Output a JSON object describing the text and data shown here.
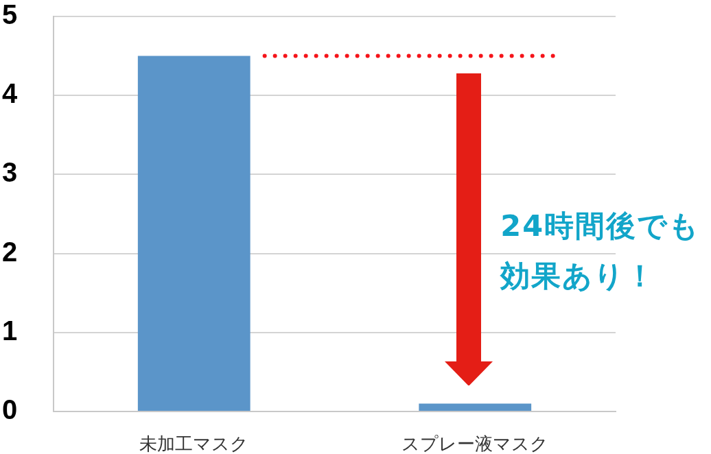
{
  "chart_data": {
    "type": "bar",
    "categories": [
      "未加工マスク",
      "スプレー液マスク"
    ],
    "values": [
      4.5,
      0.1
    ],
    "color": "#5b95c9",
    "ylim": [
      0,
      5
    ],
    "yticks": [
      0,
      1,
      2,
      3,
      4,
      5
    ],
    "grid": "y",
    "legend": false,
    "ref_lines": [
      {
        "axis": "y",
        "value": 4.5,
        "color": "#f5141a",
        "line_style": "dotted"
      }
    ],
    "annotations": [
      "24時間後でも効果あり！"
    ]
  }
}
